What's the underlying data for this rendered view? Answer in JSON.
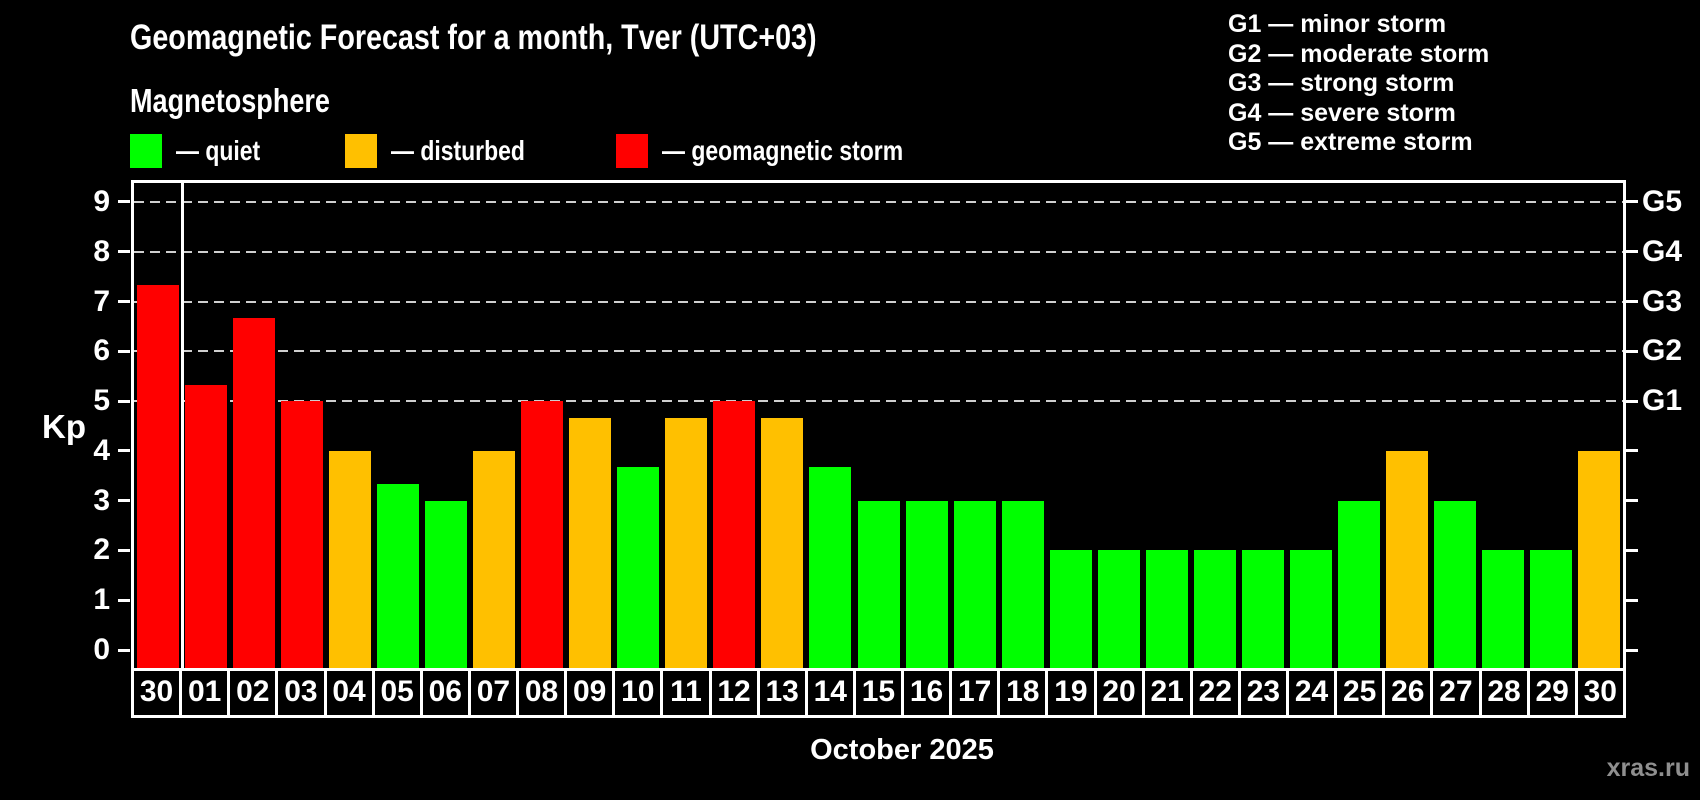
{
  "header": {
    "title": "Geomagnetic Forecast for a month, Tver (UTC+03)",
    "subtitle": "Magnetosphere"
  },
  "legend": {
    "items": [
      {
        "key": "quiet",
        "label": "— quiet"
      },
      {
        "key": "disturbed",
        "label": "— disturbed"
      },
      {
        "key": "storm",
        "label": "— geomagnetic storm"
      }
    ]
  },
  "storm_scale": {
    "lines": [
      "G1 — minor storm",
      "G2 — moderate storm",
      "G3 — strong storm",
      "G4 — severe storm",
      "G5 — extreme storm"
    ]
  },
  "chart_data": {
    "type": "bar",
    "title": "Geomagnetic Forecast for a month, Tver (UTC+03)",
    "ylabel": "Kp",
    "xlabel": "October 2025",
    "ylim": [
      0,
      9.4
    ],
    "yticks": [
      0,
      1,
      2,
      3,
      4,
      5,
      6,
      7,
      8,
      9
    ],
    "gridline_kp": [
      5,
      6,
      7,
      8,
      9
    ],
    "grid": true,
    "legend_position": "top",
    "right_axis_labels": [
      {
        "kp": 5,
        "label": "G1"
      },
      {
        "kp": 6,
        "label": "G2"
      },
      {
        "kp": 7,
        "label": "G3"
      },
      {
        "kp": 8,
        "label": "G4"
      },
      {
        "kp": 9,
        "label": "G5"
      }
    ],
    "categories": [
      "30",
      "01",
      "02",
      "03",
      "04",
      "05",
      "06",
      "07",
      "08",
      "09",
      "10",
      "11",
      "12",
      "13",
      "14",
      "15",
      "16",
      "17",
      "18",
      "19",
      "20",
      "21",
      "22",
      "23",
      "24",
      "25",
      "26",
      "27",
      "28",
      "29",
      "30"
    ],
    "values": [
      7.33,
      5.33,
      6.67,
      5,
      4,
      3.33,
      3,
      4,
      5,
      4.67,
      3.67,
      4.67,
      5,
      4.67,
      3.67,
      3,
      3,
      3,
      3,
      2,
      2,
      2,
      2,
      2,
      2,
      3,
      4,
      3,
      2,
      2,
      4
    ],
    "statuses": [
      "storm",
      "storm",
      "storm",
      "storm",
      "disturbed",
      "quiet",
      "quiet",
      "disturbed",
      "storm",
      "disturbed",
      "quiet",
      "disturbed",
      "storm",
      "disturbed",
      "quiet",
      "quiet",
      "quiet",
      "quiet",
      "quiet",
      "quiet",
      "quiet",
      "quiet",
      "quiet",
      "quiet",
      "quiet",
      "quiet",
      "disturbed",
      "quiet",
      "quiet",
      "quiet",
      "disturbed"
    ],
    "colors": {
      "quiet": "#00ff00",
      "disturbed": "#ffc000",
      "storm": "#ff0000"
    },
    "separator_after_index": 0
  },
  "footer": {
    "caption": "October 2025",
    "watermark": "xras.ru"
  }
}
